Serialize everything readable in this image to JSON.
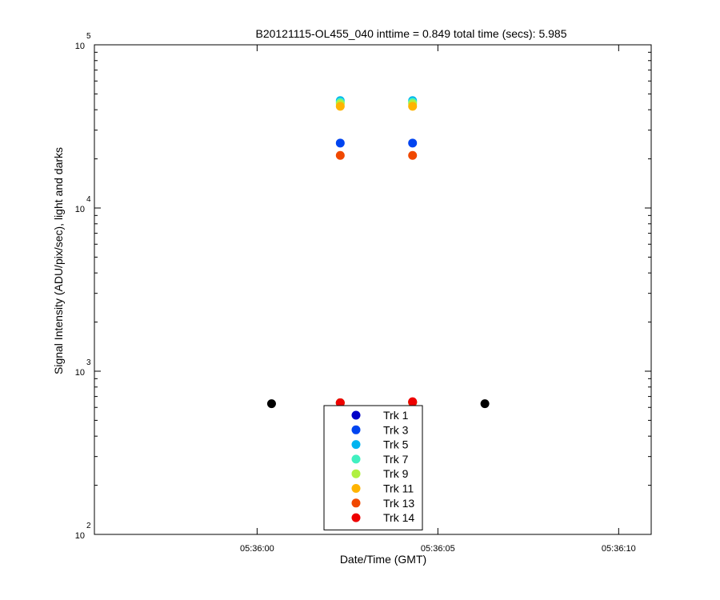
{
  "chart_data": {
    "type": "scatter",
    "title": "B20121115-OL455_040 inttime = 0.849 total time (secs): 5.985",
    "xlabel": "Date/Time (GMT)",
    "ylabel": "Signal Intensity (ADU/pix/sec), light and darks",
    "y_scale": "log",
    "ylim": [
      100,
      100000
    ],
    "xlim": [
      "05:35:55.5",
      "05:36:10.9"
    ],
    "x_ticks": [
      "05:36:00",
      "05:36:05",
      "05:36:10"
    ],
    "y_ticks": [
      {
        "base": "10",
        "exp": "2"
      },
      {
        "base": "10",
        "exp": "3"
      },
      {
        "base": "10",
        "exp": "4"
      },
      {
        "base": "10",
        "exp": "5"
      }
    ],
    "grid": false,
    "legend_position": "bottom-center",
    "series": [
      {
        "name": "Trk 1",
        "color": "#0000c8",
        "points": [
          {
            "x": "05:36:02.3",
            "y": 640
          },
          {
            "x": "05:36:04.3",
            "y": 645
          }
        ]
      },
      {
        "name": "Trk 3",
        "color": "#0044f0",
        "points": [
          {
            "x": "05:36:02.3",
            "y": 25000
          },
          {
            "x": "05:36:04.3",
            "y": 25000
          },
          {
            "x": "05:36:02.3",
            "y": 640
          },
          {
            "x": "05:36:04.3",
            "y": 645
          }
        ]
      },
      {
        "name": "Trk 5",
        "color": "#00b4f0",
        "points": [
          {
            "x": "05:36:02.3",
            "y": 45500
          },
          {
            "x": "05:36:04.3",
            "y": 45500
          },
          {
            "x": "05:36:02.3",
            "y": 640
          },
          {
            "x": "05:36:04.3",
            "y": 645
          }
        ]
      },
      {
        "name": "Trk 7",
        "color": "#40f0c0",
        "points": [
          {
            "x": "05:36:02.3",
            "y": 44500
          },
          {
            "x": "05:36:04.3",
            "y": 44500
          },
          {
            "x": "05:36:02.3",
            "y": 640
          },
          {
            "x": "05:36:04.3",
            "y": 645
          }
        ]
      },
      {
        "name": "Trk 9",
        "color": "#b0f040",
        "points": [
          {
            "x": "05:36:02.3",
            "y": 43500
          },
          {
            "x": "05:36:04.3",
            "y": 43500
          },
          {
            "x": "05:36:02.3",
            "y": 640
          },
          {
            "x": "05:36:04.3",
            "y": 645
          }
        ]
      },
      {
        "name": "Trk 11",
        "color": "#ffb400",
        "points": [
          {
            "x": "05:36:02.3",
            "y": 42000
          },
          {
            "x": "05:36:04.3",
            "y": 42000
          },
          {
            "x": "05:36:02.3",
            "y": 640
          },
          {
            "x": "05:36:04.3",
            "y": 645
          }
        ]
      },
      {
        "name": "Trk 13",
        "color": "#f04800",
        "points": [
          {
            "x": "05:36:02.3",
            "y": 21000
          },
          {
            "x": "05:36:04.3",
            "y": 21000
          },
          {
            "x": "05:36:02.3",
            "y": 640
          },
          {
            "x": "05:36:04.3",
            "y": 645
          }
        ]
      },
      {
        "name": "Trk 14",
        "color": "#ee0000",
        "points": [
          {
            "x": "05:36:02.3",
            "y": 640
          },
          {
            "x": "05:36:04.3",
            "y": 650
          }
        ]
      }
    ],
    "darks": {
      "color": "#000000",
      "points": [
        {
          "x": "05:36:00.4",
          "y": 632
        },
        {
          "x": "05:36:06.3",
          "y": 632
        }
      ]
    }
  }
}
